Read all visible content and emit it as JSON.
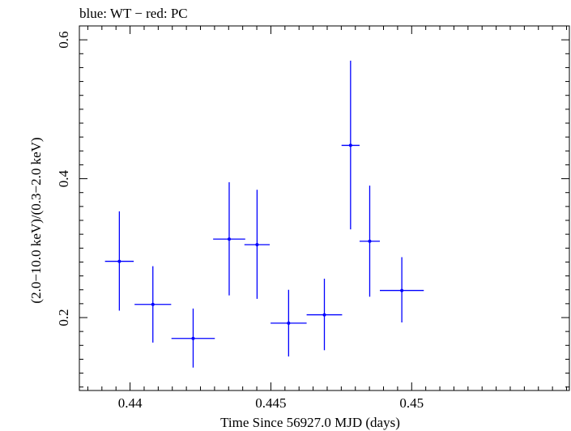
{
  "chart_data": {
    "type": "scatter",
    "title": "blue: WT − red: PC",
    "xlabel": "Time Since 56927.0 MJD (days)",
    "ylabel": "(2.0−10.0 keV)/(0.3−2.0 keV)",
    "xlim": [
      0.4382,
      0.4556
    ],
    "ylim": [
      0.095,
      0.62
    ],
    "x_ticks": [
      0.44,
      0.445,
      0.45
    ],
    "x_tick_labels": [
      "0.44",
      "0.445",
      "0.45"
    ],
    "y_ticks": [
      0.2,
      0.4,
      0.6
    ],
    "y_tick_labels": [
      "0.2",
      "0.4",
      "0.6"
    ],
    "grid": false,
    "series": [
      {
        "name": "WT",
        "color": "#0000ff",
        "points": [
          {
            "x": 0.43962,
            "y": 0.281,
            "xerr": 0.00051,
            "yerr_lo": 0.071,
            "yerr_hi": 0.072
          },
          {
            "x": 0.44081,
            "y": 0.219,
            "xerr": 0.00065,
            "yerr_lo": 0.055,
            "yerr_hi": 0.055
          },
          {
            "x": 0.44224,
            "y": 0.17,
            "xerr": 0.00077,
            "yerr_lo": 0.042,
            "yerr_hi": 0.043
          },
          {
            "x": 0.44352,
            "y": 0.313,
            "xerr": 0.00057,
            "yerr_lo": 0.081,
            "yerr_hi": 0.082
          },
          {
            "x": 0.44451,
            "y": 0.305,
            "xerr": 0.00045,
            "yerr_lo": 0.078,
            "yerr_hi": 0.079
          },
          {
            "x": 0.44563,
            "y": 0.192,
            "xerr": 0.00064,
            "yerr_lo": 0.048,
            "yerr_hi": 0.048
          },
          {
            "x": 0.4469,
            "y": 0.204,
            "xerr": 0.00063,
            "yerr_lo": 0.051,
            "yerr_hi": 0.052
          },
          {
            "x": 0.44783,
            "y": 0.448,
            "xerr": 0.00032,
            "yerr_lo": 0.121,
            "yerr_hi": 0.122
          },
          {
            "x": 0.44851,
            "y": 0.31,
            "xerr": 0.00036,
            "yerr_lo": 0.08,
            "yerr_hi": 0.08
          },
          {
            "x": 0.44965,
            "y": 0.239,
            "xerr": 0.00078,
            "yerr_lo": 0.046,
            "yerr_hi": 0.048
          }
        ]
      }
    ]
  }
}
